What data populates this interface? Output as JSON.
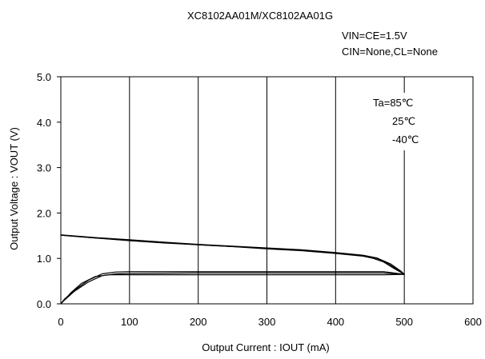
{
  "chart_data": {
    "type": "line",
    "title": "XC8102AA01M/XC8102AA01G",
    "conditions": [
      "VIN=CE=1.5V",
      "CIN=None,CL=None"
    ],
    "xlabel": "Output Current : IOUT (mA)",
    "ylabel": "Output Voltage : VOUT (V)",
    "xlim": [
      0,
      600
    ],
    "ylim": [
      0,
      5
    ],
    "x_ticks": [
      "0",
      "100",
      "200",
      "300",
      "400",
      "500",
      "600"
    ],
    "y_ticks": [
      "0.0",
      "1.0",
      "2.0",
      "3.0",
      "4.0",
      "5.0"
    ],
    "grid": "vertical",
    "legend_position": "top-right",
    "legend": [
      "Ta=85℃",
      "25℃",
      "-40℃"
    ],
    "series": [
      {
        "name": "Ta=85℃",
        "x": [
          0,
          50,
          100,
          150,
          200,
          250,
          300,
          350,
          400,
          440,
          455,
          470,
          485,
          500,
          470,
          400,
          300,
          200,
          100,
          70,
          50,
          30,
          15,
          5,
          0
        ],
        "y": [
          1.51,
          1.45,
          1.39,
          1.34,
          1.3,
          1.26,
          1.21,
          1.17,
          1.11,
          1.05,
          1.0,
          0.92,
          0.78,
          0.65,
          0.64,
          0.64,
          0.64,
          0.64,
          0.64,
          0.64,
          0.6,
          0.45,
          0.25,
          0.08,
          0.0
        ]
      },
      {
        "name": "25℃",
        "x": [
          0,
          50,
          100,
          150,
          200,
          250,
          300,
          350,
          400,
          440,
          460,
          475,
          490,
          500,
          470,
          400,
          300,
          200,
          100,
          80,
          60,
          40,
          20,
          5,
          0
        ],
        "y": [
          1.51,
          1.45,
          1.4,
          1.35,
          1.3,
          1.26,
          1.22,
          1.18,
          1.12,
          1.06,
          1.0,
          0.9,
          0.75,
          0.65,
          0.68,
          0.68,
          0.68,
          0.68,
          0.67,
          0.66,
          0.62,
          0.48,
          0.28,
          0.08,
          0.0
        ]
      },
      {
        "name": "-40℃",
        "x": [
          0,
          50,
          100,
          150,
          200,
          250,
          300,
          350,
          400,
          440,
          460,
          480,
          495,
          500,
          470,
          400,
          300,
          200,
          100,
          80,
          60,
          40,
          20,
          5,
          0
        ],
        "y": [
          1.52,
          1.46,
          1.41,
          1.36,
          1.31,
          1.27,
          1.23,
          1.19,
          1.13,
          1.07,
          1.01,
          0.88,
          0.72,
          0.65,
          0.71,
          0.71,
          0.71,
          0.71,
          0.71,
          0.7,
          0.66,
          0.52,
          0.3,
          0.1,
          0.0
        ]
      }
    ]
  }
}
